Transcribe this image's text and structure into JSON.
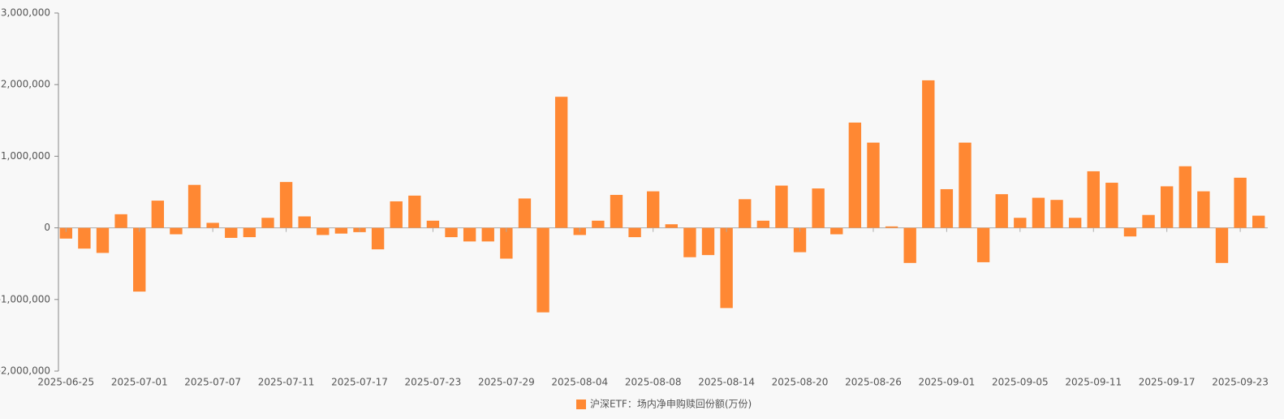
{
  "chart_data": {
    "type": "bar",
    "categories": [
      "2025-06-25",
      null,
      null,
      null,
      "2025-07-01",
      null,
      null,
      null,
      "2025-07-07",
      null,
      null,
      null,
      "2025-07-11",
      null,
      null,
      null,
      "2025-07-17",
      null,
      null,
      null,
      "2025-07-23",
      null,
      null,
      null,
      "2025-07-29",
      null,
      null,
      null,
      "2025-08-04",
      null,
      null,
      null,
      "2025-08-08",
      null,
      null,
      null,
      "2025-08-14",
      null,
      null,
      null,
      "2025-08-20",
      null,
      null,
      null,
      "2025-08-26",
      null,
      null,
      null,
      "2025-09-01",
      null,
      null,
      null,
      "2025-09-05",
      null,
      null,
      null,
      "2025-09-11",
      null,
      null,
      null,
      "2025-09-17",
      null,
      null,
      null,
      "2025-09-23",
      null
    ],
    "series": [
      {
        "name": "沪深ETF：场内净申购赎回份额(万份)",
        "color": "#ff8833",
        "values": [
          -150000,
          -290000,
          -350000,
          190000,
          -890000,
          380000,
          -90000,
          600000,
          70000,
          -140000,
          -130000,
          140000,
          640000,
          160000,
          -100000,
          -80000,
          -60000,
          -300000,
          370000,
          450000,
          100000,
          -130000,
          -190000,
          -190000,
          -430000,
          410000,
          -1180000,
          1830000,
          -100000,
          100000,
          460000,
          -130000,
          510000,
          50000,
          -410000,
          -380000,
          -1120000,
          400000,
          100000,
          590000,
          -340000,
          550000,
          -90000,
          1470000,
          1190000,
          20000,
          -490000,
          2060000,
          540000,
          1190000,
          -480000,
          470000,
          140000,
          420000,
          390000,
          140000,
          790000,
          630000,
          -120000,
          180000,
          580000,
          860000,
          510000,
          -490000,
          700000,
          170000
        ]
      }
    ],
    "ylim": [
      -2000000,
      3000000
    ],
    "yticks": [
      {
        "value": -2000000,
        "label": "-2,000,000"
      },
      {
        "value": -1000000,
        "label": "-1,000,000"
      },
      0,
      {
        "value": 1000000,
        "label": "1,000,000"
      },
      {
        "value": 2000000,
        "label": "2,000,000"
      },
      {
        "value": 3000000,
        "label": "3,000,000"
      }
    ],
    "legend": "bottom"
  }
}
